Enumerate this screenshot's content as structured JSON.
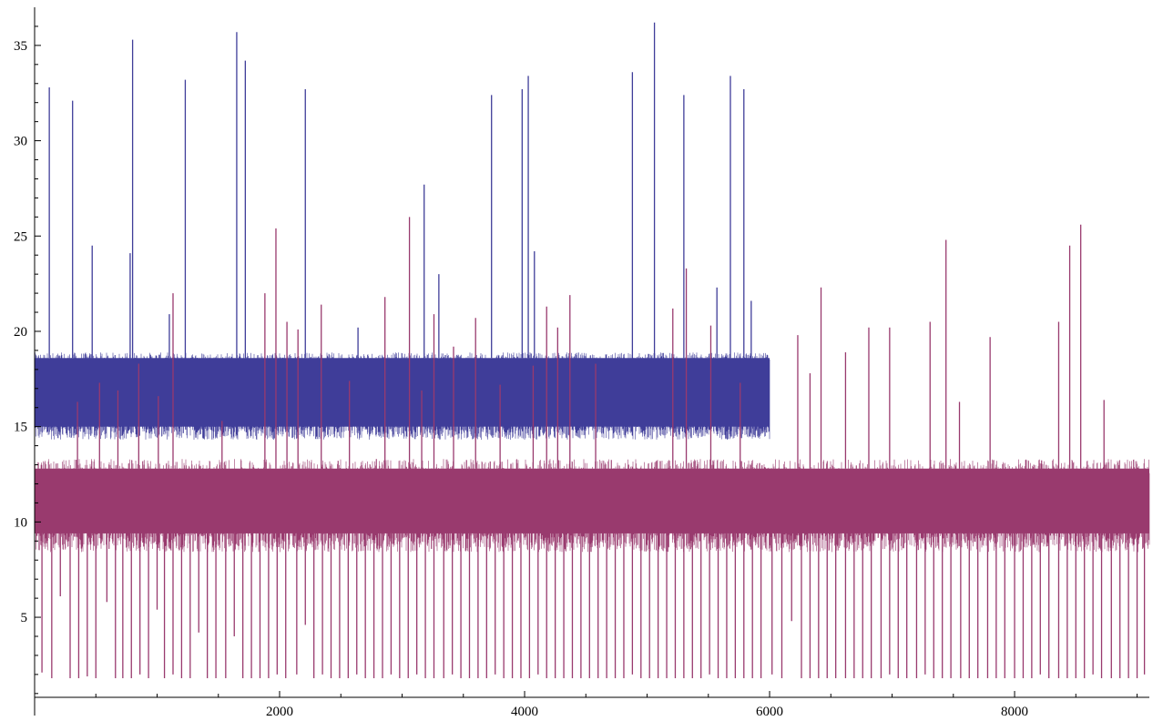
{
  "chart_data": {
    "type": "line",
    "title": "",
    "xlabel": "",
    "ylabel": "",
    "xlim": [
      0,
      9100
    ],
    "ylim": [
      0.8,
      37
    ],
    "grid": false,
    "legend": "none",
    "x_ticks": [
      2000,
      4000,
      6000,
      8000
    ],
    "y_ticks": [
      5,
      10,
      15,
      20,
      25,
      30,
      35
    ],
    "series": [
      {
        "color": "#3f3d99",
        "x_range": [
          0,
          6000
        ],
        "band": [
          15.0,
          18.6
        ],
        "outer_band": [
          14.3,
          19.3
        ],
        "spikes_up": [
          [
            120,
            32.8
          ],
          [
            310,
            32.1
          ],
          [
            470,
            24.5
          ],
          [
            780,
            24.1
          ],
          [
            800,
            35.3
          ],
          [
            1100,
            20.9
          ],
          [
            1230,
            33.2
          ],
          [
            1650,
            35.7
          ],
          [
            1720,
            34.2
          ],
          [
            2210,
            32.7
          ],
          [
            2640,
            20.2
          ],
          [
            3180,
            27.7
          ],
          [
            3300,
            23.0
          ],
          [
            3730,
            32.4
          ],
          [
            3980,
            32.7
          ],
          [
            4030,
            33.4
          ],
          [
            4080,
            24.2
          ],
          [
            4880,
            33.6
          ],
          [
            5060,
            36.2
          ],
          [
            5300,
            32.4
          ],
          [
            5570,
            22.3
          ],
          [
            5680,
            33.4
          ],
          [
            5790,
            32.7
          ],
          [
            5850,
            21.6
          ]
        ]
      },
      {
        "color": "#993a6e",
        "x_range": [
          0,
          9100
        ],
        "band": [
          9.4,
          12.8
        ],
        "outer_band": [
          8.4,
          14.0
        ],
        "spikes_up": [
          [
            350,
            16.3
          ],
          [
            530,
            17.3
          ],
          [
            680,
            16.9
          ],
          [
            850,
            18.3
          ],
          [
            1010,
            16.6
          ],
          [
            1130,
            22.0
          ],
          [
            1530,
            15.3
          ],
          [
            1880,
            22.0
          ],
          [
            1970,
            25.4
          ],
          [
            2060,
            20.5
          ],
          [
            2150,
            20.1
          ],
          [
            2340,
            21.4
          ],
          [
            2570,
            17.4
          ],
          [
            2860,
            21.8
          ],
          [
            3060,
            26.0
          ],
          [
            3160,
            16.9
          ],
          [
            3260,
            20.9
          ],
          [
            3420,
            19.2
          ],
          [
            3600,
            20.7
          ],
          [
            3800,
            17.2
          ],
          [
            4070,
            18.2
          ],
          [
            4180,
            21.3
          ],
          [
            4270,
            20.2
          ],
          [
            4370,
            21.9
          ],
          [
            4580,
            18.3
          ],
          [
            5210,
            21.2
          ],
          [
            5320,
            23.3
          ],
          [
            5520,
            20.3
          ],
          [
            5760,
            17.3
          ],
          [
            6230,
            19.8
          ],
          [
            6330,
            17.8
          ],
          [
            6420,
            22.3
          ],
          [
            6620,
            18.9
          ],
          [
            6810,
            20.2
          ],
          [
            6980,
            20.2
          ],
          [
            7310,
            20.5
          ],
          [
            7440,
            24.8
          ],
          [
            7550,
            16.3
          ],
          [
            7800,
            19.7
          ],
          [
            8360,
            20.5
          ],
          [
            8450,
            24.5
          ],
          [
            8540,
            25.6
          ],
          [
            8730,
            16.4
          ]
        ],
        "spikes_down": [
          [
            60,
            2.1
          ],
          [
            140,
            1.8
          ],
          [
            210,
            6.1
          ],
          [
            290,
            1.8
          ],
          [
            360,
            1.8
          ],
          [
            430,
            1.9
          ],
          [
            500,
            1.8
          ],
          [
            590,
            5.8
          ],
          [
            660,
            1.8
          ],
          [
            720,
            1.8
          ],
          [
            790,
            1.8
          ],
          [
            860,
            2.0
          ],
          [
            930,
            1.8
          ],
          [
            1000,
            5.4
          ],
          [
            1060,
            1.8
          ],
          [
            1130,
            2.0
          ],
          [
            1200,
            1.8
          ],
          [
            1270,
            1.8
          ],
          [
            1340,
            4.2
          ],
          [
            1410,
            1.8
          ],
          [
            1480,
            1.8
          ],
          [
            1560,
            1.8
          ],
          [
            1630,
            4.0
          ],
          [
            1700,
            1.8
          ],
          [
            1770,
            1.8
          ],
          [
            1840,
            1.8
          ],
          [
            1910,
            1.8
          ],
          [
            1980,
            2.0
          ],
          [
            2050,
            1.8
          ],
          [
            2140,
            2.0
          ],
          [
            2210,
            4.6
          ],
          [
            2280,
            1.8
          ],
          [
            2350,
            2.0
          ],
          [
            2420,
            1.8
          ],
          [
            2490,
            1.8
          ],
          [
            2560,
            1.8
          ],
          [
            2630,
            2.0
          ],
          [
            2700,
            1.8
          ],
          [
            2770,
            1.8
          ],
          [
            2840,
            1.8
          ],
          [
            2910,
            2.0
          ],
          [
            2980,
            1.8
          ],
          [
            3050,
            1.8
          ],
          [
            3120,
            2.0
          ],
          [
            3190,
            1.8
          ],
          [
            3260,
            1.8
          ],
          [
            3340,
            1.8
          ],
          [
            3410,
            2.0
          ],
          [
            3480,
            1.8
          ],
          [
            3550,
            1.8
          ],
          [
            3620,
            1.8
          ],
          [
            3690,
            1.8
          ],
          [
            3760,
            2.0
          ],
          [
            3830,
            1.8
          ],
          [
            3900,
            1.8
          ],
          [
            3970,
            1.8
          ],
          [
            4040,
            1.8
          ],
          [
            4110,
            2.0
          ],
          [
            4180,
            1.8
          ],
          [
            4250,
            1.8
          ],
          [
            4320,
            1.8
          ],
          [
            4390,
            1.8
          ],
          [
            4460,
            1.8
          ],
          [
            4530,
            1.8
          ],
          [
            4600,
            1.8
          ],
          [
            4670,
            1.8
          ],
          [
            4740,
            1.8
          ],
          [
            4810,
            1.8
          ],
          [
            4880,
            2.0
          ],
          [
            4950,
            1.8
          ],
          [
            5020,
            1.8
          ],
          [
            5090,
            1.8
          ],
          [
            5160,
            1.8
          ],
          [
            5230,
            1.8
          ],
          [
            5300,
            1.8
          ],
          [
            5370,
            1.8
          ],
          [
            5440,
            1.8
          ],
          [
            5510,
            2.0
          ],
          [
            5580,
            1.8
          ],
          [
            5650,
            1.8
          ],
          [
            5720,
            1.8
          ],
          [
            5790,
            1.8
          ],
          [
            5860,
            1.8
          ],
          [
            5930,
            1.8
          ],
          [
            6020,
            2.0
          ],
          [
            6100,
            1.8
          ],
          [
            6180,
            4.8
          ],
          [
            6260,
            1.8
          ],
          [
            6330,
            1.8
          ],
          [
            6400,
            1.8
          ],
          [
            6470,
            1.8
          ],
          [
            6540,
            1.8
          ],
          [
            6620,
            1.8
          ],
          [
            6690,
            1.8
          ],
          [
            6760,
            1.8
          ],
          [
            6830,
            1.8
          ],
          [
            6910,
            1.8
          ],
          [
            6980,
            2.0
          ],
          [
            7050,
            1.8
          ],
          [
            7120,
            1.8
          ],
          [
            7200,
            1.8
          ],
          [
            7270,
            2.0
          ],
          [
            7340,
            1.8
          ],
          [
            7410,
            1.8
          ],
          [
            7480,
            1.8
          ],
          [
            7560,
            1.8
          ],
          [
            7630,
            1.8
          ],
          [
            7700,
            1.8
          ],
          [
            7780,
            1.8
          ],
          [
            7850,
            1.8
          ],
          [
            7920,
            1.8
          ],
          [
            8000,
            1.8
          ],
          [
            8070,
            1.8
          ],
          [
            8140,
            1.8
          ],
          [
            8210,
            2.0
          ],
          [
            8280,
            1.8
          ],
          [
            8360,
            1.8
          ],
          [
            8430,
            1.8
          ],
          [
            8500,
            1.8
          ],
          [
            8570,
            1.8
          ],
          [
            8640,
            2.0
          ],
          [
            8710,
            1.8
          ],
          [
            8790,
            1.8
          ],
          [
            8860,
            1.8
          ],
          [
            8930,
            1.8
          ],
          [
            9000,
            1.8
          ],
          [
            9060,
            2.0
          ]
        ]
      }
    ]
  }
}
